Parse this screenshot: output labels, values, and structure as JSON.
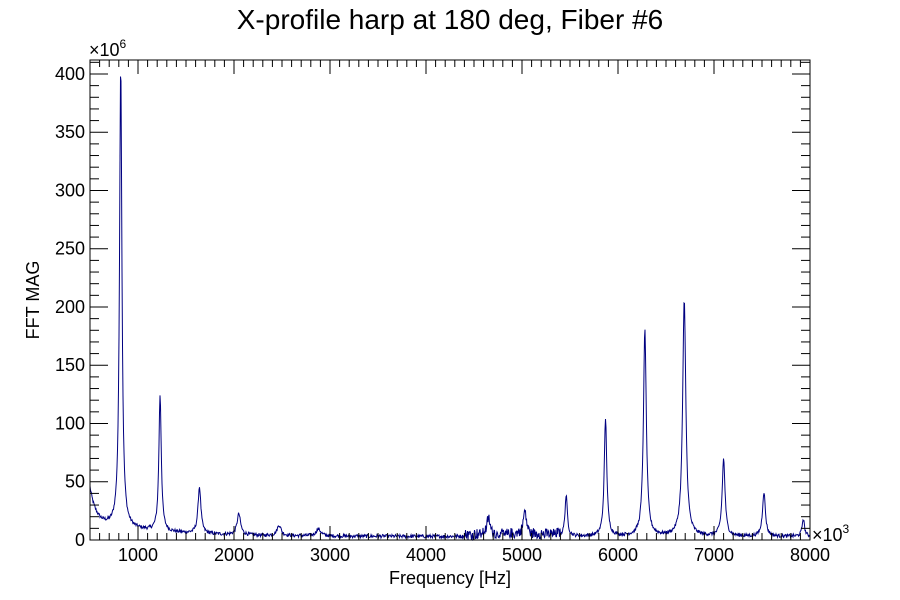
{
  "chart_data": {
    "type": "line",
    "title": "X-profile harp at 180 deg, Fiber #6",
    "xlabel": "Frequency [Hz]",
    "ylabel": "FFT MAG",
    "xlim": [
      500,
      8000
    ],
    "ylim": [
      0,
      412
    ],
    "x_multiplier": {
      "base": "×10",
      "exp": "3"
    },
    "y_multiplier": {
      "base": "×10",
      "exp": "6"
    },
    "x_ticks": [
      1000,
      2000,
      3000,
      4000,
      5000,
      6000,
      7000,
      8000
    ],
    "y_ticks": [
      0,
      50,
      100,
      150,
      200,
      250,
      300,
      350,
      400
    ],
    "grid": false,
    "line_color": "#000080",
    "peaks": [
      {
        "x": 820,
        "y": 397,
        "w": 15
      },
      {
        "x": 1230,
        "y": 117,
        "w": 15
      },
      {
        "x": 1640,
        "y": 40,
        "w": 18
      },
      {
        "x": 2050,
        "y": 18,
        "w": 22
      },
      {
        "x": 2470,
        "y": 9,
        "w": 25
      },
      {
        "x": 2880,
        "y": 6,
        "w": 30
      },
      {
        "x": 4650,
        "y": 14,
        "w": 20
      },
      {
        "x": 5030,
        "y": 20,
        "w": 20
      },
      {
        "x": 5460,
        "y": 35,
        "w": 15
      },
      {
        "x": 5870,
        "y": 101,
        "w": 16
      },
      {
        "x": 6280,
        "y": 177,
        "w": 18
      },
      {
        "x": 6690,
        "y": 202,
        "w": 20
      },
      {
        "x": 7100,
        "y": 66,
        "w": 18
      },
      {
        "x": 7520,
        "y": 38,
        "w": 18
      },
      {
        "x": 7930,
        "y": 15,
        "w": 15
      }
    ],
    "series": [
      {
        "values_approx": [
          [
            500,
            45
          ],
          [
            550,
            28
          ],
          [
            600,
            22
          ],
          [
            650,
            20
          ],
          [
            700,
            25
          ],
          [
            750,
            40
          ],
          [
            800,
            120
          ],
          [
            820,
            397
          ],
          [
            850,
            90
          ],
          [
            900,
            40
          ],
          [
            1000,
            22
          ],
          [
            1100,
            18
          ],
          [
            1200,
            35
          ],
          [
            1230,
            117
          ],
          [
            1260,
            35
          ],
          [
            1350,
            15
          ],
          [
            1500,
            14
          ],
          [
            1640,
            40
          ],
          [
            1700,
            15
          ],
          [
            1900,
            8
          ],
          [
            2050,
            18
          ],
          [
            2200,
            5
          ],
          [
            2470,
            9
          ],
          [
            2880,
            6
          ],
          [
            3500,
            4
          ],
          [
            4000,
            4
          ],
          [
            4500,
            6
          ],
          [
            4650,
            14
          ],
          [
            5030,
            20
          ],
          [
            5300,
            8
          ],
          [
            5460,
            35
          ],
          [
            5600,
            15
          ],
          [
            5800,
            30
          ],
          [
            5870,
            101
          ],
          [
            5950,
            30
          ],
          [
            6100,
            30
          ],
          [
            6280,
            177
          ],
          [
            6400,
            35
          ],
          [
            6550,
            40
          ],
          [
            6690,
            202
          ],
          [
            6800,
            40
          ],
          [
            6950,
            20
          ],
          [
            7100,
            66
          ],
          [
            7250,
            15
          ],
          [
            7400,
            8
          ],
          [
            7520,
            38
          ],
          [
            7650,
            6
          ],
          [
            7800,
            4
          ],
          [
            7930,
            15
          ],
          [
            8000,
            3
          ]
        ]
      }
    ]
  }
}
